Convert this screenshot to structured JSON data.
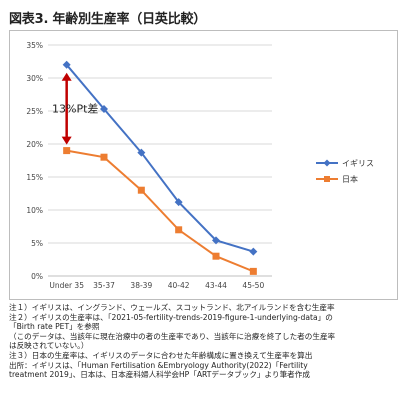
{
  "title": "図表3. 年齢別生産率（日英比較）",
  "chart_data": {
    "type": "line",
    "categories": [
      "Under 35",
      "35-37",
      "38-39",
      "40-42",
      "43-44",
      "45-50"
    ],
    "series": [
      {
        "name": "イギリス",
        "values": [
          32,
          25.3,
          18.7,
          11.2,
          5.4,
          3.7
        ],
        "color": "#4472c4",
        "marker": "diamond"
      },
      {
        "name": "日本",
        "values": [
          19,
          18,
          13,
          7,
          3,
          0.7
        ],
        "color": "#ed7d31",
        "marker": "square"
      }
    ],
    "y_ticks": [
      "0%",
      "5%",
      "10%",
      "15%",
      "20%",
      "25%",
      "30%",
      "35%"
    ],
    "ylim": [
      0,
      35
    ],
    "y_unit": "%",
    "grid": true,
    "legend": "right",
    "annotation": {
      "text": "13%Pt差",
      "category": "Under 35",
      "from": 32,
      "to": 19,
      "color": "#c00000"
    }
  },
  "notes": [
    "注１）イギリスは、イングランド、ウェールズ、スコットランド、北アイルランドを含む生産率",
    "注２）イギリスの生産率は、「2021-05-fertility-trends-2019-figure-1-underlying-data」の",
    "「Birth rate PET」を参照",
    "（このデータは、当該年に現在治療中の者の生産率であり、当該年に治療を終了した者の生産率",
    "は反映されていない。）",
    "注３）日本の生産率は、イギリスのデータに合わせた年齢構成に置き換えて生産率を算出",
    "出所：イギリスは、「Human Fertilisation &Embryology Authority(2022)「Fertility",
    "treatment 2019」、日本は、日本産科婦人科学会HP「ARTデータブック」より筆者作成"
  ]
}
